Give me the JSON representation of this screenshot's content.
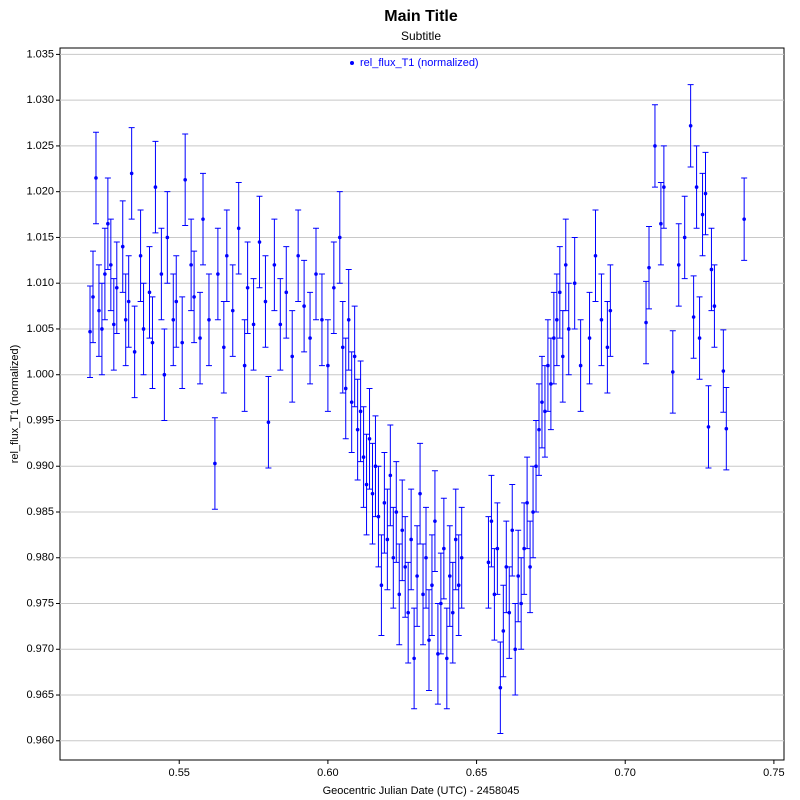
{
  "chart_data": {
    "type": "scatter",
    "title": "Main Title",
    "subtitle": "Subtitle",
    "x_label": "Geocentric Julian Date (UTC) - 2458045",
    "y_label": "rel_flux_T1 (normalized)",
    "xlim": [
      0.5099,
      0.7534
    ],
    "ylim": [
      0.9579,
      1.0357
    ],
    "xticks": [
      0.55,
      {
        "value": 0.6,
        "label": "0.60"
      },
      0.65,
      {
        "value": 0.7,
        "label": "0.70"
      },
      0.75
    ],
    "yticks": [
      {
        "value": 0.96,
        "label": "0.960"
      },
      0.965,
      {
        "value": 0.97,
        "label": "0.970"
      },
      0.975,
      {
        "value": 0.98,
        "label": "0.980"
      },
      0.985,
      {
        "value": 0.99,
        "label": "0.990"
      },
      0.995,
      {
        "value": 1.0,
        "label": "1.000"
      },
      1.005,
      {
        "value": 1.01,
        "label": "1.010"
      },
      1.015,
      {
        "value": 1.02,
        "label": "1.020"
      },
      1.025,
      {
        "value": 1.03,
        "label": "1.030"
      },
      1.035
    ],
    "grid": true,
    "legend": "top",
    "x": [
      0.52,
      0.521,
      0.522,
      0.523,
      0.524,
      0.525,
      0.526,
      0.527,
      0.528,
      0.529,
      0.531,
      0.532,
      0.533,
      0.534,
      0.535,
      0.537,
      0.538,
      0.54,
      0.541,
      0.542,
      0.544,
      0.545,
      0.546,
      0.548,
      0.549,
      0.551,
      0.552,
      0.554,
      0.555,
      0.557,
      0.558,
      0.56,
      0.562,
      0.563,
      0.565,
      0.566,
      0.568,
      0.57,
      0.572,
      0.573,
      0.575,
      0.577,
      0.579,
      0.58,
      0.582,
      0.584,
      0.586,
      0.588,
      0.59,
      0.592,
      0.594,
      0.596,
      0.598,
      0.6,
      0.602,
      0.604,
      0.605,
      0.606,
      0.607,
      0.608,
      0.609,
      0.61,
      0.611,
      0.612,
      0.613,
      0.614,
      0.615,
      0.616,
      0.617,
      0.618,
      0.619,
      0.62,
      0.621,
      0.622,
      0.623,
      0.624,
      0.625,
      0.626,
      0.627,
      0.628,
      0.629,
      0.63,
      0.631,
      0.632,
      0.633,
      0.634,
      0.635,
      0.636,
      0.637,
      0.638,
      0.639,
      0.64,
      0.641,
      0.642,
      0.643,
      0.644,
      0.645,
      0.654,
      0.655,
      0.656,
      0.657,
      0.658,
      0.659,
      0.66,
      0.661,
      0.662,
      0.663,
      0.664,
      0.665,
      0.666,
      0.667,
      0.668,
      0.669,
      0.67,
      0.671,
      0.672,
      0.673,
      0.674,
      0.675,
      0.676,
      0.677,
      0.678,
      0.679,
      0.68,
      0.681,
      0.683,
      0.685,
      0.688,
      0.69,
      0.692,
      0.694,
      0.695,
      0.707,
      0.708,
      0.71,
      0.712,
      0.713,
      0.716,
      0.718,
      0.72,
      0.722,
      0.723,
      0.724,
      0.725,
      0.726,
      0.727,
      0.728,
      0.729,
      0.73,
      0.733,
      0.734,
      0.74
    ],
    "series": [
      {
        "name": "rel_flux_T1 (normalized)",
        "color": "#0000ff",
        "values": [
          1.0047,
          1.0085,
          1.0215,
          1.007,
          1.005,
          1.011,
          1.0165,
          1.012,
          1.0055,
          1.0095,
          1.014,
          1.006,
          1.008,
          1.022,
          1.0025,
          1.013,
          1.005,
          1.009,
          1.0035,
          1.0205,
          1.011,
          1.0,
          1.015,
          1.006,
          1.008,
          1.0035,
          1.0213,
          1.012,
          1.0085,
          1.004,
          1.017,
          1.006,
          0.9903,
          1.011,
          1.003,
          1.013,
          1.007,
          1.016,
          1.001,
          1.0095,
          1.0055,
          1.0145,
          1.008,
          0.9948,
          1.012,
          1.0055,
          1.009,
          1.002,
          1.013,
          1.0075,
          1.004,
          1.011,
          1.006,
          1.001,
          1.0095,
          1.015,
          1.003,
          0.9985,
          1.006,
          0.997,
          1.002,
          0.994,
          0.996,
          0.991,
          0.988,
          0.993,
          0.987,
          0.99,
          0.9845,
          0.977,
          0.986,
          0.982,
          0.989,
          0.98,
          0.985,
          0.976,
          0.983,
          0.979,
          0.974,
          0.982,
          0.969,
          0.978,
          0.987,
          0.976,
          0.98,
          0.971,
          0.977,
          0.984,
          0.9695,
          0.975,
          0.981,
          0.969,
          0.978,
          0.974,
          0.982,
          0.977,
          0.98,
          0.9795,
          0.984,
          0.976,
          0.981,
          0.9658,
          0.972,
          0.979,
          0.974,
          0.983,
          0.97,
          0.978,
          0.975,
          0.981,
          0.986,
          0.979,
          0.985,
          0.99,
          0.994,
          0.997,
          0.996,
          1.001,
          0.999,
          1.004,
          1.006,
          1.009,
          1.002,
          1.012,
          1.005,
          1.01,
          1.001,
          1.004,
          1.013,
          1.006,
          1.003,
          1.007,
          1.0057,
          1.0117,
          1.025,
          1.0165,
          1.0205,
          1.0003,
          1.012,
          1.015,
          1.0272,
          1.0063,
          1.0205,
          1.004,
          1.0175,
          1.0198,
          0.9943,
          1.0115,
          1.0075,
          1.0004,
          0.9941,
          1.017
        ],
        "errors": [
          0.005,
          0.005,
          0.005,
          0.005,
          0.005,
          0.005,
          0.005,
          0.005,
          0.005,
          0.005,
          0.005,
          0.005,
          0.005,
          0.005,
          0.005,
          0.005,
          0.005,
          0.005,
          0.005,
          0.005,
          0.005,
          0.005,
          0.005,
          0.005,
          0.005,
          0.005,
          0.005,
          0.005,
          0.005,
          0.005,
          0.005,
          0.005,
          0.005,
          0.005,
          0.005,
          0.005,
          0.005,
          0.005,
          0.005,
          0.005,
          0.005,
          0.005,
          0.005,
          0.005,
          0.005,
          0.005,
          0.005,
          0.005,
          0.005,
          0.005,
          0.005,
          0.005,
          0.005,
          0.005,
          0.005,
          0.005,
          0.005,
          0.0055,
          0.0055,
          0.0055,
          0.0055,
          0.0055,
          0.0055,
          0.0055,
          0.0055,
          0.0055,
          0.0055,
          0.0055,
          0.0055,
          0.0055,
          0.0055,
          0.0055,
          0.0055,
          0.0055,
          0.0055,
          0.0055,
          0.0055,
          0.0055,
          0.0055,
          0.0055,
          0.0055,
          0.0055,
          0.0055,
          0.0055,
          0.0055,
          0.0055,
          0.0055,
          0.0055,
          0.0055,
          0.0055,
          0.0055,
          0.0055,
          0.0055,
          0.0055,
          0.0055,
          0.0055,
          0.0055,
          0.005,
          0.005,
          0.005,
          0.005,
          0.005,
          0.005,
          0.005,
          0.005,
          0.005,
          0.005,
          0.005,
          0.005,
          0.005,
          0.005,
          0.005,
          0.005,
          0.005,
          0.005,
          0.005,
          0.005,
          0.005,
          0.005,
          0.005,
          0.005,
          0.005,
          0.005,
          0.005,
          0.005,
          0.005,
          0.005,
          0.005,
          0.005,
          0.005,
          0.005,
          0.005,
          0.0045,
          0.0045,
          0.0045,
          0.0045,
          0.0045,
          0.0045,
          0.0045,
          0.0045,
          0.0045,
          0.0045,
          0.0045,
          0.0045,
          0.0045,
          0.0045,
          0.0045,
          0.0045,
          0.0045,
          0.0045,
          0.0045,
          0.0045
        ]
      }
    ]
  }
}
